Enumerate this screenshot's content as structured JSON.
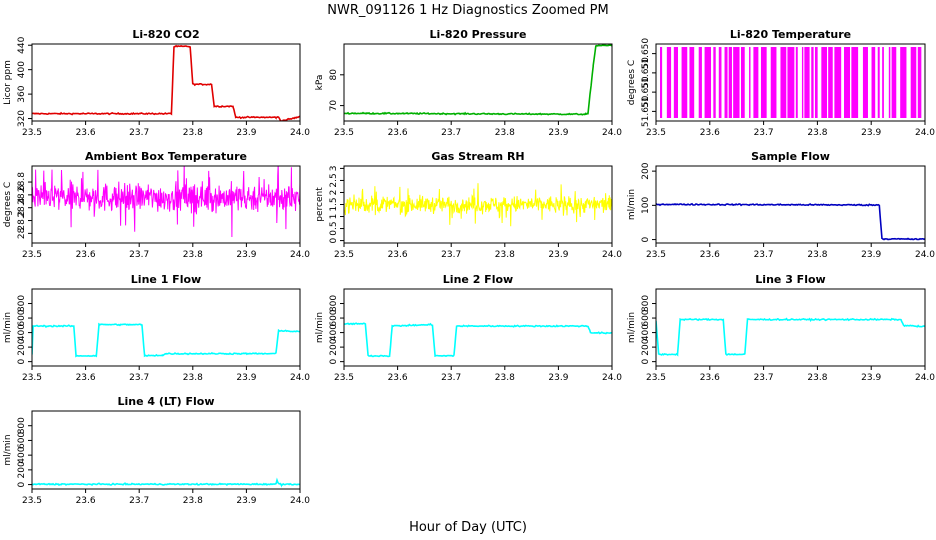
{
  "figure": {
    "title": "NWR_091126  1 Hz Diagnostics Zoomed PM",
    "xlabel": "Hour of Day (UTC)"
  },
  "chart_data": [
    {
      "id": "co2",
      "type": "line",
      "title": "Li-820 CO2",
      "ylabel": "Licor ppm",
      "color": "#e00000",
      "xlim": [
        23.5,
        24.0
      ],
      "ylim": [
        316,
        442
      ],
      "xticks": [
        23.5,
        23.6,
        23.7,
        23.8,
        23.9,
        24.0
      ],
      "yticks": [
        320,
        360,
        400,
        440
      ],
      "series": [
        {
          "name": "CO2",
          "x": [
            23.5,
            23.76,
            23.765,
            23.795,
            23.8,
            23.835,
            23.84,
            23.875,
            23.88,
            23.955,
            23.96,
            23.965,
            24.0
          ],
          "y": [
            328,
            328,
            438,
            438,
            376,
            376,
            340,
            340,
            322,
            322,
            322,
            316,
            323
          ]
        }
      ]
    },
    {
      "id": "pressure",
      "type": "line",
      "title": "Li-820 Pressure",
      "ylabel": "kPa",
      "color": "#00b000",
      "xlim": [
        23.5,
        24.0
      ],
      "ylim": [
        65,
        90
      ],
      "xticks": [
        23.5,
        23.6,
        23.7,
        23.8,
        23.9,
        24.0
      ],
      "yticks": [
        70,
        80
      ],
      "series": [
        {
          "name": "Pressure",
          "x": [
            23.5,
            23.95,
            23.955,
            23.965,
            23.97,
            24.0
          ],
          "y": [
            67.5,
            67.2,
            67.2,
            83,
            89.5,
            89.5
          ]
        }
      ]
    },
    {
      "id": "licor_temp",
      "type": "line",
      "title": "Li-820 Temperature",
      "ylabel": "degrees C",
      "color": "#ff00ff",
      "xlim": [
        23.5,
        24.0
      ],
      "ylim": [
        51.6495,
        51.6505
      ],
      "ytick_labels": [
        "51.650",
        "51.650",
        "51.650",
        "51.650"
      ],
      "xticks": [
        23.5,
        23.6,
        23.7,
        23.8,
        23.9,
        24.0
      ],
      "pattern": "quantized-dense"
    },
    {
      "id": "box_temp",
      "type": "line",
      "title": "Ambient Box Temperature",
      "ylabel": "degrees C",
      "color": "#ff00ff",
      "xlim": [
        23.5,
        24.0
      ],
      "ylim": [
        27.85,
        29.05
      ],
      "xticks": [
        23.5,
        23.6,
        23.7,
        23.8,
        23.9,
        24.0
      ],
      "yticks": [
        28.0,
        28.2,
        28.4,
        28.6,
        28.8
      ],
      "noise": {
        "mean": 28.56,
        "sd": 0.16
      }
    },
    {
      "id": "rh",
      "type": "line",
      "title": "Gas Stream RH",
      "ylabel": "percent",
      "color": "#ffff00",
      "xlim": [
        23.5,
        24.0
      ],
      "ylim": [
        -0.1,
        3.1
      ],
      "xticks": [
        23.5,
        23.6,
        23.7,
        23.8,
        23.9,
        24.0
      ],
      "yticks": [
        0.0,
        0.5,
        1.0,
        1.5,
        2.0,
        2.5,
        3.0
      ],
      "noise": {
        "mean": 1.5,
        "sd": 0.25
      }
    },
    {
      "id": "sample_flow",
      "type": "line",
      "title": "Sample Flow",
      "ylabel": "ml/min",
      "color": "#0000c0",
      "xlim": [
        23.5,
        24.0
      ],
      "ylim": [
        -10,
        215
      ],
      "xticks": [
        23.5,
        23.6,
        23.7,
        23.8,
        23.9,
        24.0
      ],
      "yticks": [
        0,
        100,
        200
      ],
      "series": [
        {
          "name": "Sample",
          "x": [
            23.5,
            23.915,
            23.92,
            24.0
          ],
          "y": [
            103,
            101,
            2,
            1
          ]
        }
      ]
    },
    {
      "id": "line1",
      "type": "line",
      "title": "Line 1 Flow",
      "ylabel": "ml/min",
      "color": "#00ffff",
      "xlim": [
        23.5,
        24.0
      ],
      "ylim": [
        -60,
        1000
      ],
      "xticks": [
        23.5,
        23.6,
        23.7,
        23.8,
        23.9,
        24.0
      ],
      "yticks": [
        0,
        200,
        400,
        600,
        800
      ],
      "series": [
        {
          "name": "Line1",
          "x": [
            23.5,
            23.502,
            23.578,
            23.582,
            23.62,
            23.625,
            23.705,
            23.71,
            23.745,
            23.75,
            23.955,
            23.96,
            24.0
          ],
          "y": [
            100,
            490,
            490,
            80,
            80,
            510,
            510,
            80,
            90,
            110,
            110,
            430,
            410
          ]
        }
      ]
    },
    {
      "id": "line2",
      "type": "line",
      "title": "Line 2 Flow",
      "ylabel": "ml/min",
      "color": "#00ffff",
      "xlim": [
        23.5,
        24.0
      ],
      "ylim": [
        -60,
        1000
      ],
      "xticks": [
        23.5,
        23.6,
        23.7,
        23.8,
        23.9,
        24.0
      ],
      "yticks": [
        0,
        200,
        400,
        600,
        800
      ],
      "series": [
        {
          "name": "Line2",
          "x": [
            23.5,
            23.54,
            23.545,
            23.585,
            23.59,
            23.665,
            23.67,
            23.705,
            23.71,
            23.955,
            23.96,
            24.0
          ],
          "y": [
            520,
            520,
            80,
            80,
            490,
            510,
            80,
            80,
            490,
            490,
            400,
            390
          ]
        }
      ]
    },
    {
      "id": "line3",
      "type": "line",
      "title": "Line 3 Flow",
      "ylabel": "ml/min",
      "color": "#00ffff",
      "xlim": [
        23.5,
        24.0
      ],
      "ylim": [
        -60,
        1000
      ],
      "xticks": [
        23.5,
        23.6,
        23.7,
        23.8,
        23.9,
        24.0
      ],
      "yticks": [
        0,
        200,
        400,
        600,
        800
      ],
      "series": [
        {
          "name": "Line3",
          "x": [
            23.5,
            23.505,
            23.54,
            23.545,
            23.625,
            23.63,
            23.665,
            23.67,
            23.955,
            23.96,
            24.0
          ],
          "y": [
            560,
            100,
            100,
            580,
            580,
            100,
            100,
            580,
            580,
            500,
            480
          ]
        }
      ]
    },
    {
      "id": "line4",
      "type": "line",
      "title": "Line 4 (LT) Flow",
      "ylabel": "ml/min",
      "color": "#00ffff",
      "xlim": [
        23.5,
        24.0
      ],
      "ylim": [
        -60,
        1000
      ],
      "xticks": [
        23.5,
        23.6,
        23.7,
        23.8,
        23.9,
        24.0
      ],
      "yticks": [
        0,
        200,
        400,
        600,
        800
      ],
      "series": [
        {
          "name": "Line4",
          "x": [
            23.5,
            23.955,
            23.957,
            23.96,
            23.965,
            24.0
          ],
          "y": [
            5,
            5,
            60,
            15,
            5,
            5
          ]
        }
      ]
    }
  ]
}
